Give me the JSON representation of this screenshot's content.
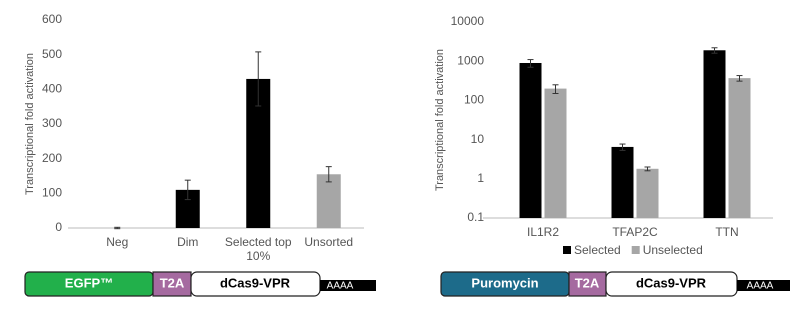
{
  "chart_data": [
    {
      "type": "bar",
      "ylabel": "Transcriptional fold activation",
      "categories": [
        "Neg",
        "Dim",
        "Selected top 10%",
        "Unsorted"
      ],
      "values": [
        0,
        110,
        430,
        155
      ],
      "errors": [
        2,
        28,
        78,
        22
      ],
      "colors": [
        "#000000",
        "#000000",
        "#000000",
        "#a6a6a6"
      ],
      "ylim": [
        0,
        600
      ],
      "yticks": [
        0,
        100,
        200,
        300,
        400,
        500,
        600
      ]
    },
    {
      "type": "bar",
      "ylabel": "Transcriptional fold activation",
      "log_scale": true,
      "categories": [
        "IL1R2",
        "TFAP2C",
        "TTN"
      ],
      "series": [
        {
          "name": "Selected",
          "color": "#000000",
          "values": [
            900,
            6.5,
            1900
          ],
          "errors": [
            200,
            1.2,
            300
          ]
        },
        {
          "name": "Unselected",
          "color": "#a6a6a6",
          "values": [
            200,
            1.8,
            370
          ],
          "errors": [
            50,
            0.2,
            60
          ]
        }
      ],
      "legend": "bottom",
      "ylim": [
        0.1,
        10000
      ],
      "yticks": [
        0.1,
        1,
        10,
        100,
        1000,
        10000
      ]
    }
  ],
  "constructs": [
    [
      "EGFP™",
      "T2A",
      "dCas9-VPR",
      "AAAA"
    ],
    [
      "Puromycin",
      "T2A",
      "dCas9-VPR",
      "AAAA"
    ]
  ]
}
